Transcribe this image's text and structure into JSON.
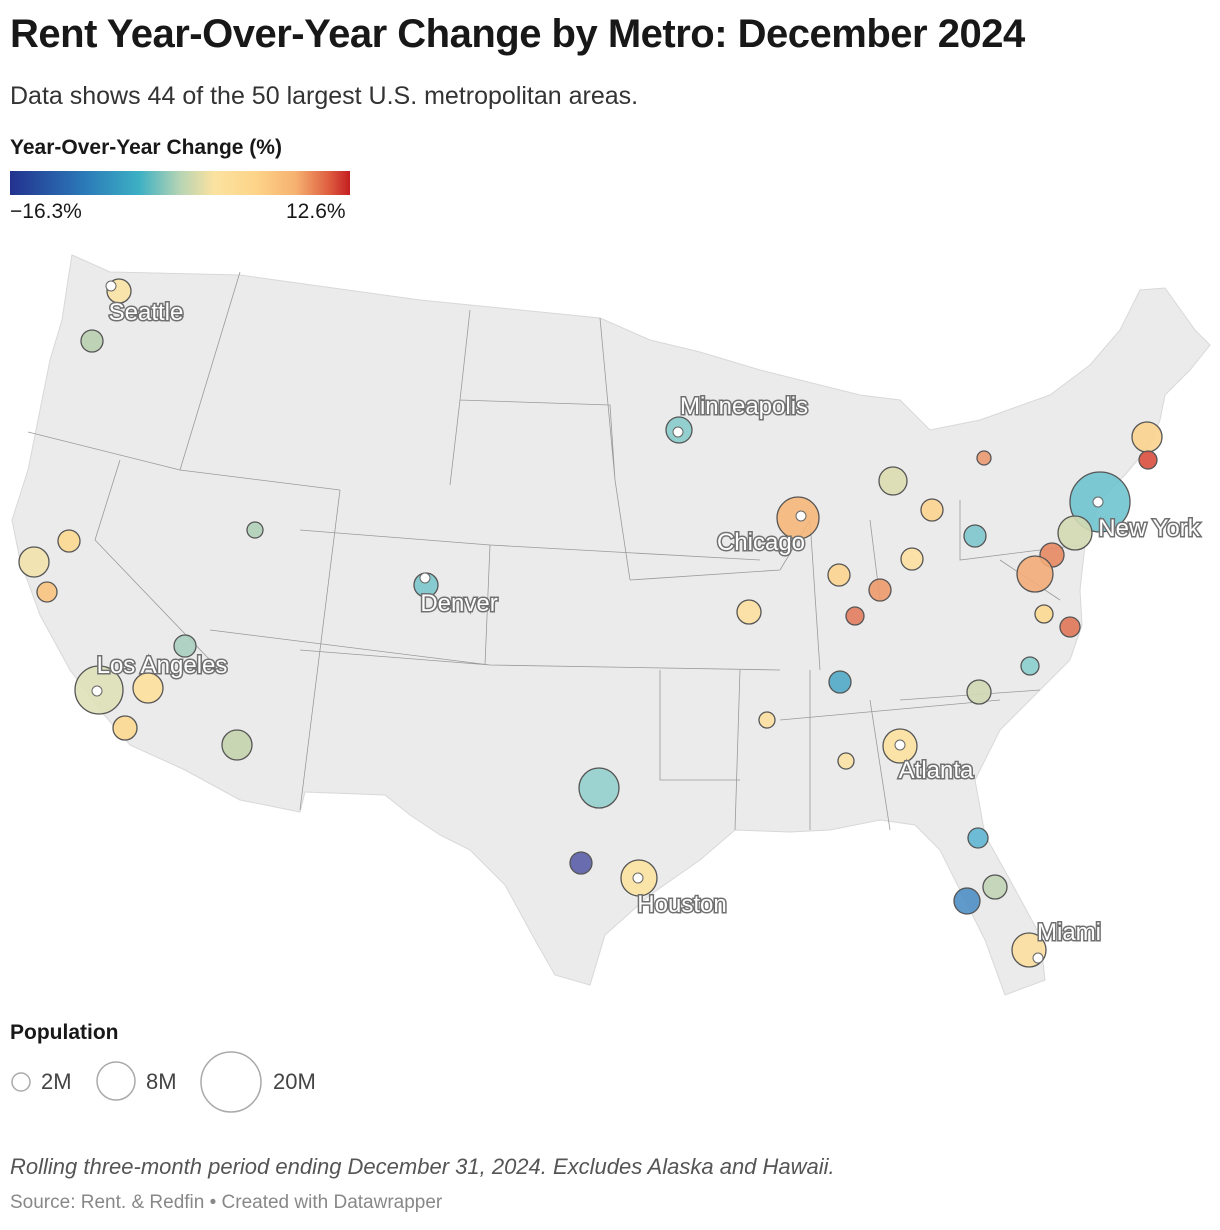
{
  "title": "Rent Year-Over-Year Change by Metro: December 2024",
  "subtitle": "Data shows 44 of the 50 largest U.S. metropolitan areas.",
  "color_legend": {
    "title": "Year-Over-Year Change (%)",
    "min_label": "−16.3%",
    "max_label": "12.6%",
    "min_value": -16.3,
    "max_value": 12.6,
    "colors": [
      "#23328f",
      "#2b7ab8",
      "#3db0c4",
      "#b6d4b4",
      "#fbe2a0",
      "#fdd58a",
      "#f6b170",
      "#de5c3f",
      "#c41e22"
    ]
  },
  "size_legend": {
    "title": "Population",
    "items": [
      {
        "label": "2M"
      },
      {
        "label": "8M"
      },
      {
        "label": "20M"
      }
    ]
  },
  "map": {
    "land_color": "#ebebeb",
    "bubbles": [
      {
        "label": "Seattle",
        "color": "#fbe3a5"
      },
      {
        "label": "",
        "color": "#b9cfb0"
      },
      {
        "label": "",
        "color": "#f3e2ad"
      },
      {
        "label": "",
        "color": "#fcd990"
      },
      {
        "label": "",
        "color": "#f9c47f"
      },
      {
        "label": "Los Angeles",
        "color": "#dfe0b8"
      },
      {
        "label": "",
        "color": "#fde09c"
      },
      {
        "label": "",
        "color": "#fcd990"
      },
      {
        "label": "",
        "color": "#a9cfc0"
      },
      {
        "label": "",
        "color": "#c5d4ad"
      },
      {
        "label": "",
        "color": "#afd0b8"
      },
      {
        "label": "Denver",
        "color": "#7cc7cc"
      },
      {
        "label": "",
        "color": "#94cfcc"
      },
      {
        "label": "",
        "color": "#5b5fa8"
      },
      {
        "label": "Houston",
        "color": "#fde3a0"
      },
      {
        "label": "Minneapolis",
        "color": "#88cccb"
      },
      {
        "label": "Chicago",
        "color": "#f7b77a"
      },
      {
        "label": "",
        "color": "#dcdcb0"
      },
      {
        "label": "",
        "color": "#eb9a70"
      },
      {
        "label": "",
        "color": "#fcd48f"
      },
      {
        "label": "",
        "color": "#7ec7cd"
      },
      {
        "label": "",
        "color": "#fde0a0"
      },
      {
        "label": "",
        "color": "#fcd48f"
      },
      {
        "label": "",
        "color": "#ee9a6b"
      },
      {
        "label": "",
        "color": "#e27d5f"
      },
      {
        "label": "",
        "color": "#fde0a0"
      },
      {
        "label": "New York",
        "color": "#70c4cf"
      },
      {
        "label": "",
        "color": "#d4d9b2"
      },
      {
        "label": "",
        "color": "#e88a63"
      },
      {
        "label": "",
        "color": "#f3ac78"
      },
      {
        "label": "",
        "color": "#fcd38f"
      },
      {
        "label": "",
        "color": "#d94e3f"
      },
      {
        "label": "",
        "color": "#fcd990"
      },
      {
        "label": "",
        "color": "#e07556"
      },
      {
        "label": "",
        "color": "#8bcfcf"
      },
      {
        "label": "",
        "color": "#cfd8b5"
      },
      {
        "label": "",
        "color": "#51a9c8"
      },
      {
        "label": "",
        "color": "#fde0a0"
      },
      {
        "label": "",
        "color": "#fde3a5"
      },
      {
        "label": "Atlanta",
        "color": "#fde2a0"
      },
      {
        "label": "",
        "color": "#5fb6d1"
      },
      {
        "label": "",
        "color": "#c2d4b5"
      },
      {
        "label": "",
        "color": "#4f8fc4"
      },
      {
        "label": "Miami",
        "color": "#fcdf9e"
      }
    ]
  },
  "notes": "Rolling three-month period ending December 31, 2024. Excludes Alaska and Hawaii.",
  "source": "Source: Rent. & Redfin • Created with Datawrapper"
}
